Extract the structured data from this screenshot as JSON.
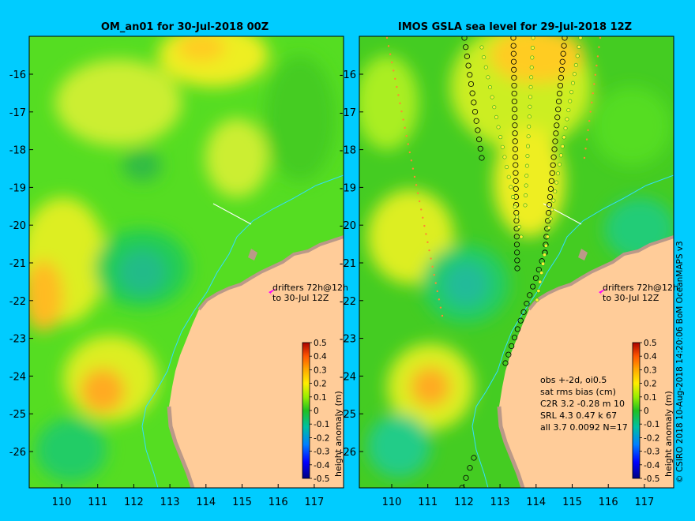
{
  "left_panel": {
    "title": "OM_an01 for 30-Jul-2018 00Z",
    "drifter_note_1": "drifters 72h@12h",
    "drifter_note_2": "to 30-Jul 12Z"
  },
  "right_panel": {
    "title": "IMOS GSLA sea level  for 29-Jul-2018 12Z",
    "drifter_note_1": "drifters 72h@12h",
    "drifter_note_2": "to 30-Jul 12Z",
    "stats_lines": [
      "obs +-2d, oi0.5",
      "sat rms bias (cm)",
      "C2R   3.2 -0.28 m 10",
      "SRL   4.3 0.47 k 67",
      "all   3.7 0.0092 N=17"
    ]
  },
  "x_ticks": [
    "110",
    "111",
    "112",
    "113",
    "114",
    "115",
    "116",
    "117"
  ],
  "y_ticks": [
    "-16",
    "-17",
    "-18",
    "-19",
    "-20",
    "-21",
    "-22",
    "-23",
    "-24",
    "-25",
    "-26"
  ],
  "colorbar": {
    "label": "height anomaly (m)",
    "ticks": [
      "0.5",
      "0.4",
      "0.3",
      "0.2",
      "0.1",
      "0",
      "-0.1",
      "-0.2",
      "-0.3",
      "-0.4",
      "-0.5"
    ]
  },
  "credit": "© CSIRO 2018  10-Aug-2018 14:20:06 BoM OceanMAPS v3",
  "colors": {
    "background": "#00ccff",
    "land": "#ffcc99",
    "coast": "#bb9988",
    "drifter_marker": "#ff00ff",
    "isobath": "#33ddff"
  }
}
